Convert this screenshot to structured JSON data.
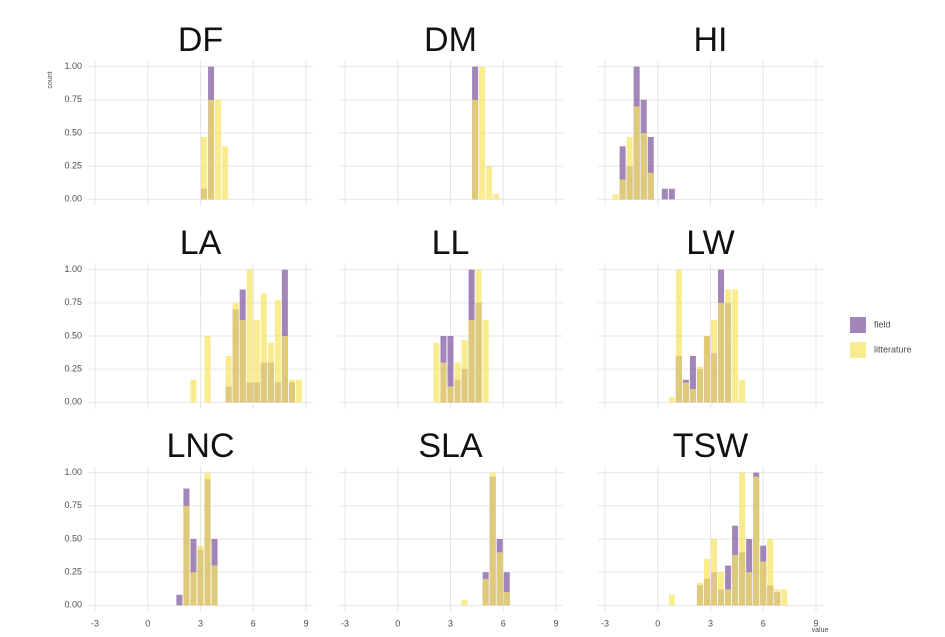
{
  "axes": {
    "xlabel": "value",
    "ylabel": "count",
    "xlim": [
      -3.4,
      9.4
    ],
    "xticks": [
      -3,
      0,
      3,
      6,
      9
    ],
    "ylim": [
      -0.05,
      1.05
    ],
    "yticks": [
      {
        "value": 0,
        "label": "0.00"
      },
      {
        "value": 0.25,
        "label": "0.25"
      },
      {
        "value": 0.5,
        "label": "0.50"
      },
      {
        "value": 0.75,
        "label": "0.75"
      },
      {
        "value": 1,
        "label": "1.00"
      }
    ],
    "legend_position": "right"
  },
  "chart_data": [
    {
      "type": "histogram",
      "title": "DF",
      "bins": [
        3.0,
        3.4,
        3.8,
        4.2,
        4.6
      ],
      "series": [
        {
          "name": "field",
          "color": "#7e57a0",
          "values": [
            0.08,
            1.0,
            0,
            0
          ]
        },
        {
          "name": "litterature",
          "color": "#f7e463",
          "values": [
            0.47,
            0.75,
            0.75,
            0.4
          ]
        }
      ]
    },
    {
      "type": "histogram",
      "title": "DM",
      "bins": [
        4.2,
        4.6,
        5.0,
        5.4,
        5.8
      ],
      "series": [
        {
          "name": "field",
          "color": "#7e57a0",
          "values": [
            1.0,
            0,
            0,
            0
          ]
        },
        {
          "name": "litterature",
          "color": "#f7e463",
          "values": [
            0.75,
            1.0,
            0.25,
            0.04
          ]
        }
      ]
    },
    {
      "type": "histogram",
      "title": "HI",
      "bins": [
        -2.6,
        -2.2,
        -1.8,
        -1.4,
        -1.0,
        -0.6,
        -0.2,
        0.2,
        0.6,
        1.0
      ],
      "series": [
        {
          "name": "field",
          "color": "#7e57a0",
          "values": [
            0,
            0.4,
            0.25,
            1.0,
            0.75,
            0.47,
            0,
            0.08,
            0.08
          ]
        },
        {
          "name": "litterature",
          "color": "#f7e463",
          "values": [
            0.04,
            0.15,
            0.47,
            0.7,
            0.5,
            0.2,
            0,
            0,
            0
          ]
        }
      ]
    },
    {
      "type": "histogram",
      "title": "LA",
      "bins": [
        2.4,
        2.8,
        3.2,
        3.6,
        4.0,
        4.4,
        4.8,
        5.2,
        5.6,
        6.0,
        6.4,
        6.8,
        7.2,
        7.6,
        8.0,
        8.4,
        8.8
      ],
      "series": [
        {
          "name": "field",
          "color": "#7e57a0",
          "values": [
            0,
            0,
            0,
            0,
            0,
            0.12,
            0.7,
            0.85,
            0.15,
            0.15,
            0.3,
            0.3,
            0.15,
            1.0,
            0.15,
            0
          ]
        },
        {
          "name": "litterature",
          "color": "#f7e463",
          "values": [
            0.17,
            0,
            0.5,
            0,
            0,
            0.35,
            0.75,
            0.62,
            1.0,
            0.62,
            0.82,
            0.45,
            0.77,
            0.5,
            0.17,
            0.17
          ]
        }
      ]
    },
    {
      "type": "histogram",
      "title": "LL",
      "bins": [
        2.0,
        2.4,
        2.8,
        3.2,
        3.6,
        4.0,
        4.4,
        4.8,
        5.2
      ],
      "series": [
        {
          "name": "field",
          "color": "#7e57a0",
          "values": [
            0,
            0.5,
            0.5,
            0.17,
            0.25,
            1.0,
            0.75,
            0
          ]
        },
        {
          "name": "litterature",
          "color": "#f7e463",
          "values": [
            0.45,
            0.3,
            0.12,
            0.3,
            0.47,
            0.62,
            1.0,
            0.62
          ]
        }
      ]
    },
    {
      "type": "histogram",
      "title": "LW",
      "bins": [
        0.6,
        1.0,
        1.4,
        1.8,
        2.2,
        2.6,
        3.0,
        3.4,
        3.8,
        4.2,
        4.6,
        5.0
      ],
      "series": [
        {
          "name": "field",
          "color": "#7e57a0",
          "values": [
            0,
            0.35,
            0.17,
            0.35,
            0.25,
            0.5,
            0.37,
            1.0,
            0.75,
            0,
            0
          ]
        },
        {
          "name": "litterature",
          "color": "#f7e463",
          "values": [
            0.04,
            1.0,
            0.15,
            0.1,
            0.27,
            0.5,
            0.62,
            0.75,
            0.85,
            0.85,
            0.17
          ]
        }
      ]
    },
    {
      "type": "histogram",
      "title": "LNC",
      "bins": [
        1.6,
        2.0,
        2.4,
        2.8,
        3.2,
        3.6,
        4.0
      ],
      "series": [
        {
          "name": "field",
          "color": "#7e57a0",
          "values": [
            0.08,
            0.88,
            0.5,
            0.42,
            0.95,
            0.5
          ]
        },
        {
          "name": "litterature",
          "color": "#f7e463",
          "values": [
            0,
            0.75,
            0.25,
            0.45,
            1.0,
            0.3
          ]
        }
      ]
    },
    {
      "type": "histogram",
      "title": "SLA",
      "bins": [
        3.6,
        4.0,
        4.4,
        4.8,
        5.2,
        5.6,
        6.0,
        6.4
      ],
      "series": [
        {
          "name": "field",
          "color": "#7e57a0",
          "values": [
            0,
            0,
            0,
            0.25,
            0.97,
            0.5,
            0.25
          ]
        },
        {
          "name": "litterature",
          "color": "#f7e463",
          "values": [
            0.04,
            0,
            0,
            0.2,
            1.0,
            0.4,
            0.1
          ]
        }
      ]
    },
    {
      "type": "histogram",
      "title": "TSW",
      "bins": [
        0.6,
        1.0,
        1.4,
        1.8,
        2.2,
        2.6,
        3.0,
        3.4,
        3.8,
        4.2,
        4.6,
        5.0,
        5.4,
        5.8,
        6.2,
        6.6,
        7.0,
        7.4
      ],
      "series": [
        {
          "name": "field",
          "color": "#7e57a0",
          "values": [
            0,
            0,
            0,
            0,
            0.15,
            0.2,
            0.25,
            0.12,
            0.3,
            0.6,
            0.4,
            0.5,
            1.0,
            0.45,
            0.15,
            0.1,
            0
          ]
        },
        {
          "name": "litterature",
          "color": "#f7e463",
          "values": [
            0.08,
            0,
            0,
            0,
            0.17,
            0.35,
            0.5,
            0.25,
            0.12,
            0.38,
            1.0,
            0.25,
            0.97,
            0.33,
            0.5,
            0.12,
            0.12
          ]
        }
      ]
    }
  ]
}
